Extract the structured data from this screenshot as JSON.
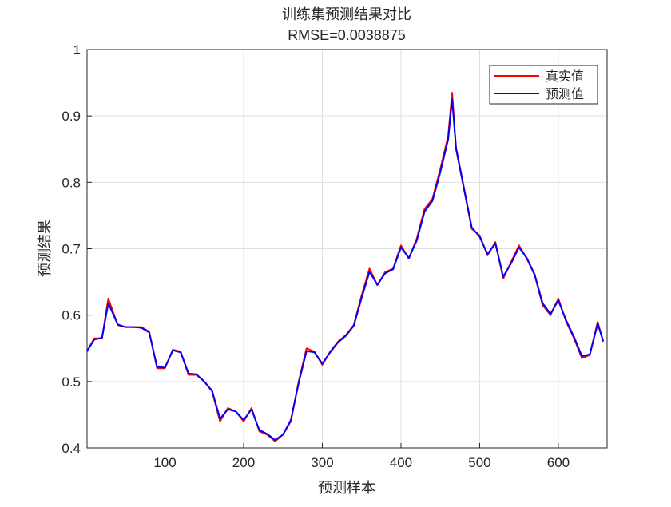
{
  "chart_data": {
    "type": "line",
    "title": "训练集预测结果对比",
    "subtitle": "RMSE=0.0038875",
    "xlabel": "预测样本",
    "ylabel": "预测结果",
    "x": [
      1,
      10,
      20,
      28,
      40,
      50,
      60,
      70,
      80,
      90,
      100,
      110,
      120,
      130,
      140,
      150,
      160,
      170,
      180,
      190,
      200,
      210,
      220,
      230,
      240,
      250,
      260,
      270,
      280,
      290,
      300,
      310,
      320,
      330,
      340,
      350,
      360,
      370,
      380,
      390,
      400,
      410,
      420,
      430,
      440,
      450,
      460,
      465,
      470,
      480,
      490,
      500,
      510,
      520,
      530,
      540,
      550,
      560,
      570,
      580,
      590,
      600,
      610,
      620,
      630,
      640,
      650,
      657
    ],
    "series": [
      {
        "name": "真实值",
        "color": "#ff0000",
        "values": [
          0.545,
          0.565,
          0.565,
          0.625,
          0.585,
          0.582,
          0.582,
          0.582,
          0.575,
          0.52,
          0.52,
          0.548,
          0.545,
          0.51,
          0.51,
          0.5,
          0.485,
          0.44,
          0.46,
          0.455,
          0.44,
          0.46,
          0.425,
          0.42,
          0.41,
          0.42,
          0.44,
          0.5,
          0.55,
          0.545,
          0.525,
          0.545,
          0.56,
          0.57,
          0.585,
          0.63,
          0.67,
          0.645,
          0.665,
          0.67,
          0.705,
          0.685,
          0.715,
          0.76,
          0.775,
          0.82,
          0.87,
          0.935,
          0.85,
          0.79,
          0.73,
          0.72,
          0.69,
          0.71,
          0.655,
          0.68,
          0.705,
          0.685,
          0.66,
          0.615,
          0.6,
          0.625,
          0.59,
          0.565,
          0.535,
          0.54,
          0.59,
          0.56
        ]
      },
      {
        "name": "预测值",
        "color": "#0000ff",
        "values": [
          0.546,
          0.563,
          0.566,
          0.618,
          0.586,
          0.582,
          0.582,
          0.581,
          0.574,
          0.522,
          0.521,
          0.547,
          0.544,
          0.512,
          0.511,
          0.5,
          0.486,
          0.444,
          0.458,
          0.455,
          0.442,
          0.458,
          0.427,
          0.421,
          0.412,
          0.42,
          0.442,
          0.498,
          0.546,
          0.544,
          0.527,
          0.544,
          0.559,
          0.569,
          0.584,
          0.626,
          0.665,
          0.646,
          0.663,
          0.669,
          0.702,
          0.686,
          0.712,
          0.756,
          0.772,
          0.815,
          0.865,
          0.925,
          0.852,
          0.792,
          0.732,
          0.718,
          0.692,
          0.708,
          0.658,
          0.678,
          0.702,
          0.686,
          0.661,
          0.618,
          0.602,
          0.622,
          0.592,
          0.567,
          0.538,
          0.541,
          0.587,
          0.561
        ]
      }
    ],
    "xlim": [
      1,
      662
    ],
    "xticks": [
      100,
      200,
      300,
      400,
      500,
      600
    ],
    "ylim": [
      0.4,
      1
    ],
    "yticks": [
      0.4,
      0.5,
      0.6,
      0.7,
      0.8,
      0.9,
      1
    ],
    "grid": true,
    "legend": "northeast"
  }
}
